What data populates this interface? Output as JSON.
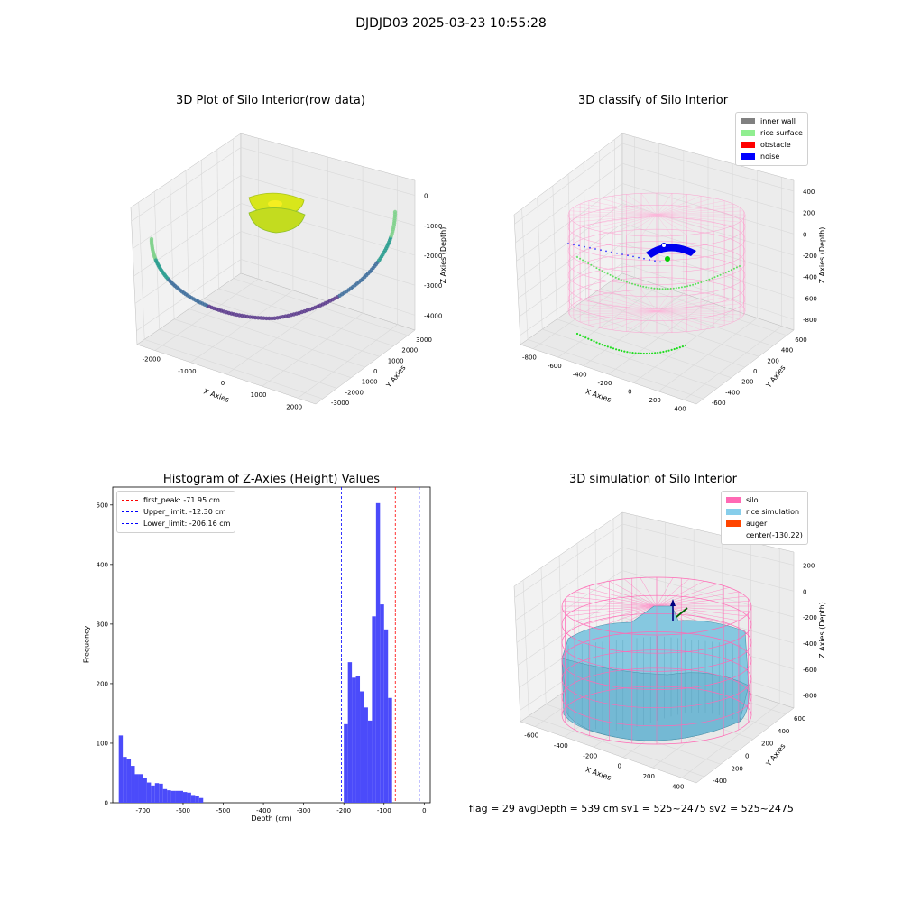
{
  "suptitle": "DJDJD03 2025-03-23 10:55:28",
  "footer": "flag = 29  avgDepth = 539 cm  sv1 = 525~2475  sv2 = 525~2475",
  "chart_data": [
    {
      "type": "scatter",
      "title": "3D Plot of Silo Interior(row data)",
      "xlabel": "X Axies",
      "ylabel": "Y Axies",
      "zlabel": "Z Axies (Depth)",
      "x_ticks": [
        "-2000",
        "-1000",
        "0",
        "1000",
        "2000"
      ],
      "y_ticks": [
        "-3000",
        "-2000",
        "-1000",
        "0",
        "1000",
        "2000",
        "3000"
      ],
      "z_ticks": [
        "-4000",
        "-3000",
        "-2000",
        "-1000",
        "0"
      ],
      "colors": {
        "low": "#5b3a8c",
        "mid": "#2a9d8f",
        "high": "#e7e419"
      }
    },
    {
      "type": "scatter",
      "title": "3D classify of Silo Interior",
      "xlabel": "X Axies",
      "ylabel": "Y Axies",
      "zlabel": "Z Axies (Depth)",
      "x_ticks": [
        "-800",
        "-600",
        "-400",
        "-200",
        "0",
        "200",
        "400"
      ],
      "y_ticks": [
        "-600",
        "-400",
        "-200",
        "0",
        "200",
        "400",
        "600"
      ],
      "z_ticks": [
        "-800",
        "-600",
        "-400",
        "-200",
        "0",
        "200",
        "400"
      ],
      "legend": [
        {
          "label": "inner wall",
          "color": "#808080"
        },
        {
          "label": "rice surface",
          "color": "#90ee90"
        },
        {
          "label": "obstacle",
          "color": "#ff0000"
        },
        {
          "label": "noise",
          "color": "#0000ff"
        }
      ]
    },
    {
      "type": "bar",
      "title": "Histogram of Z-Axies (Height) Values",
      "xlabel": "Depth (cm)",
      "ylabel": "Frequency",
      "xlim": [
        -775,
        15
      ],
      "ylim": [
        0,
        530
      ],
      "x_ticks": [
        -700,
        -600,
        -500,
        -400,
        -300,
        -200,
        -100,
        0
      ],
      "y_ticks": [
        0,
        100,
        200,
        300,
        400,
        500
      ],
      "bin_width": 10,
      "bins": [
        {
          "x": -760,
          "count": 113
        },
        {
          "x": -750,
          "count": 77
        },
        {
          "x": -740,
          "count": 74
        },
        {
          "x": -730,
          "count": 62
        },
        {
          "x": -720,
          "count": 48
        },
        {
          "x": -710,
          "count": 48
        },
        {
          "x": -700,
          "count": 42
        },
        {
          "x": -690,
          "count": 34
        },
        {
          "x": -680,
          "count": 29
        },
        {
          "x": -670,
          "count": 33
        },
        {
          "x": -660,
          "count": 32
        },
        {
          "x": -650,
          "count": 23
        },
        {
          "x": -640,
          "count": 21
        },
        {
          "x": -630,
          "count": 20
        },
        {
          "x": -620,
          "count": 20
        },
        {
          "x": -610,
          "count": 20
        },
        {
          "x": -600,
          "count": 18
        },
        {
          "x": -590,
          "count": 17
        },
        {
          "x": -580,
          "count": 13
        },
        {
          "x": -570,
          "count": 11
        },
        {
          "x": -560,
          "count": 8
        },
        {
          "x": -200,
          "count": 132
        },
        {
          "x": -190,
          "count": 236
        },
        {
          "x": -180,
          "count": 210
        },
        {
          "x": -170,
          "count": 213
        },
        {
          "x": -160,
          "count": 187
        },
        {
          "x": -150,
          "count": 160
        },
        {
          "x": -140,
          "count": 138
        },
        {
          "x": -130,
          "count": 313
        },
        {
          "x": -120,
          "count": 503
        },
        {
          "x": -110,
          "count": 333
        },
        {
          "x": -100,
          "count": 291
        },
        {
          "x": -90,
          "count": 176
        }
      ],
      "vlines": [
        {
          "label": "first_peak: -71.95 cm",
          "x": -71.95,
          "color": "#ff0000"
        },
        {
          "label": "Upper_limit: -12.30 cm",
          "x": -12.3,
          "color": "#0000ff"
        },
        {
          "label": "Lower_limit: -206.16 cm",
          "x": -206.16,
          "color": "#0000ff"
        }
      ],
      "bar_color": "#4b4bfa",
      "legend_position": "top-left"
    },
    {
      "type": "surface",
      "title": "3D simulation of Silo Interior",
      "xlabel": "X Axies",
      "ylabel": "Y Axies",
      "zlabel": "Z Axies (Depth)",
      "x_ticks": [
        "-600",
        "-400",
        "-200",
        "0",
        "200",
        "400"
      ],
      "y_ticks": [
        "-400",
        "-200",
        "0",
        "200",
        "400",
        "600"
      ],
      "z_ticks": [
        "-800",
        "-600",
        "-400",
        "-200",
        "0",
        "200"
      ],
      "legend": [
        {
          "label": "silo",
          "color": "#ff69b4"
        },
        {
          "label": "rice simulation",
          "color": "#87ceeb"
        },
        {
          "label": "auger",
          "color": "#ff4500"
        },
        {
          "label": "center(-130,22)",
          "color": ""
        }
      ]
    }
  ]
}
